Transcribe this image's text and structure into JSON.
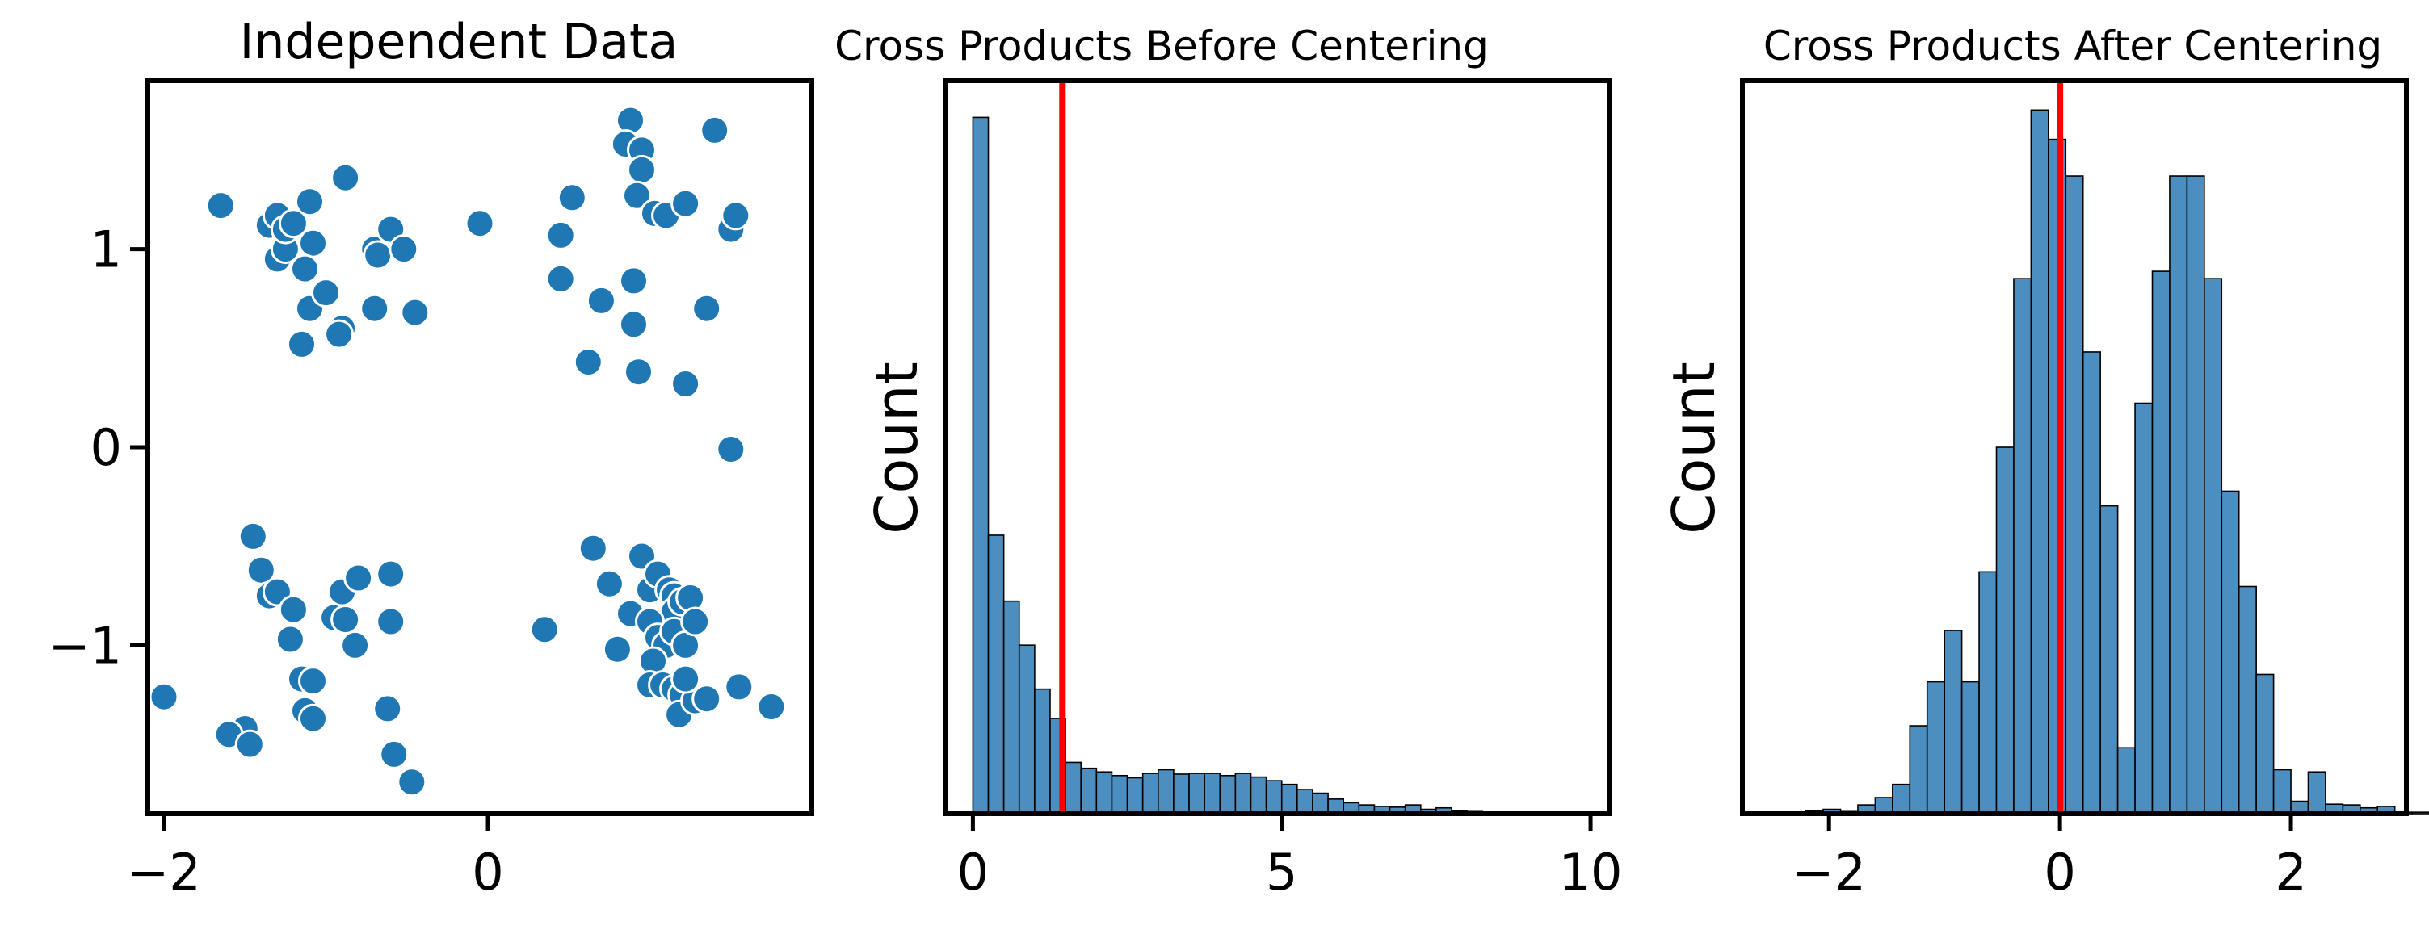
{
  "chart_data": [
    {
      "type": "scatter",
      "title": "Independent Data",
      "xlabel": "",
      "ylabel": "",
      "xlim": [
        -2.1,
        2.0
      ],
      "ylim": [
        -1.85,
        1.85
      ],
      "xticks": [
        {
          "value": -2,
          "label": "−2"
        },
        {
          "value": 0,
          "label": "0"
        }
      ],
      "yticks": [
        {
          "value": -1,
          "label": "−1"
        },
        {
          "value": 0,
          "label": "0"
        },
        {
          "value": 1,
          "label": "1"
        }
      ],
      "grid": false,
      "color": "#1f77b4",
      "points": [
        [
          -1.65,
          1.22
        ],
        [
          -1.35,
          1.12
        ],
        [
          -1.3,
          1.17
        ],
        [
          -1.3,
          0.95
        ],
        [
          -1.25,
          1.0
        ],
        [
          -1.25,
          1.1
        ],
        [
          -1.2,
          1.13
        ],
        [
          -1.1,
          1.24
        ],
        [
          -1.08,
          1.03
        ],
        [
          -1.13,
          0.9
        ],
        [
          -1.1,
          0.7
        ],
        [
          -1.0,
          0.78
        ],
        [
          -0.88,
          1.36
        ],
        [
          -0.9,
          0.6
        ],
        [
          -0.92,
          0.57
        ],
        [
          -1.15,
          0.52
        ],
        [
          -0.7,
          0.7
        ],
        [
          -0.7,
          1.0
        ],
        [
          -0.68,
          0.97
        ],
        [
          -0.6,
          1.1
        ],
        [
          -0.52,
          1.0
        ],
        [
          -0.45,
          0.68
        ],
        [
          -0.05,
          1.13
        ],
        [
          0.52,
          1.26
        ],
        [
          0.45,
          1.07
        ],
        [
          0.45,
          0.85
        ],
        [
          0.7,
          0.74
        ],
        [
          0.62,
          0.43
        ],
        [
          0.88,
          1.65
        ],
        [
          0.85,
          1.53
        ],
        [
          0.95,
          1.5
        ],
        [
          0.95,
          1.4
        ],
        [
          0.92,
          1.27
        ],
        [
          1.03,
          1.18
        ],
        [
          1.1,
          1.17
        ],
        [
          1.22,
          1.23
        ],
        [
          0.9,
          0.84
        ],
        [
          0.9,
          0.62
        ],
        [
          0.93,
          0.38
        ],
        [
          1.22,
          0.32
        ],
        [
          1.35,
          0.7
        ],
        [
          1.4,
          1.6
        ],
        [
          1.5,
          1.1
        ],
        [
          1.53,
          1.17
        ],
        [
          1.5,
          -0.01
        ],
        [
          -1.45,
          -0.45
        ],
        [
          -1.4,
          -0.62
        ],
        [
          -1.35,
          -0.75
        ],
        [
          -1.3,
          -0.73
        ],
        [
          -1.2,
          -0.82
        ],
        [
          -1.22,
          -0.97
        ],
        [
          -1.15,
          -1.17
        ],
        [
          -1.08,
          -1.18
        ],
        [
          -1.13,
          -1.33
        ],
        [
          -1.08,
          -1.37
        ],
        [
          -0.95,
          -0.86
        ],
        [
          -0.9,
          -0.73
        ],
        [
          -0.8,
          -0.66
        ],
        [
          -0.82,
          -1.0
        ],
        [
          -0.88,
          -0.87
        ],
        [
          -0.6,
          -0.64
        ],
        [
          -0.6,
          -0.88
        ],
        [
          -0.62,
          -1.32
        ],
        [
          -0.58,
          -1.55
        ],
        [
          -0.47,
          -1.69
        ],
        [
          -1.5,
          -1.42
        ],
        [
          -1.6,
          -1.45
        ],
        [
          -1.47,
          -1.5
        ],
        [
          -2.0,
          -1.26
        ],
        [
          0.35,
          -0.92
        ],
        [
          0.65,
          -0.51
        ],
        [
          0.75,
          -0.69
        ],
        [
          0.8,
          -1.02
        ],
        [
          0.88,
          -0.84
        ],
        [
          0.95,
          -0.55
        ],
        [
          1.0,
          -0.72
        ],
        [
          1.05,
          -0.64
        ],
        [
          1.12,
          -0.72
        ],
        [
          1.15,
          -0.75
        ],
        [
          1.15,
          -0.83
        ],
        [
          1.2,
          -0.78
        ],
        [
          1.25,
          -0.76
        ],
        [
          1.0,
          -0.88
        ],
        [
          1.05,
          -0.96
        ],
        [
          1.1,
          -1.0
        ],
        [
          1.15,
          -0.93
        ],
        [
          1.22,
          -1.0
        ],
        [
          1.28,
          -0.88
        ],
        [
          1.02,
          -1.08
        ],
        [
          1.0,
          -1.2
        ],
        [
          1.08,
          -1.2
        ],
        [
          1.15,
          -1.22
        ],
        [
          1.2,
          -1.25
        ],
        [
          1.18,
          -1.35
        ],
        [
          1.28,
          -1.28
        ],
        [
          1.35,
          -1.27
        ],
        [
          1.55,
          -1.21
        ],
        [
          1.75,
          -1.31
        ],
        [
          1.22,
          -1.17
        ]
      ]
    },
    {
      "type": "bar",
      "title": "Cross Products Before Centering",
      "xlabel": "",
      "ylabel": "Count",
      "xlim": [
        -0.45,
        10.3
      ],
      "ylim": [
        0,
        1.0
      ],
      "xticks": [
        {
          "value": 0,
          "label": "0"
        },
        {
          "value": 5,
          "label": "5"
        },
        {
          "value": 10,
          "label": "10"
        }
      ],
      "yticks": [],
      "bin_start": 0,
      "bin_width": 0.25,
      "values": [
        0.95,
        0.38,
        0.29,
        0.23,
        0.17,
        0.13,
        0.07,
        0.062,
        0.057,
        0.052,
        0.049,
        0.055,
        0.06,
        0.054,
        0.055,
        0.055,
        0.052,
        0.055,
        0.05,
        0.045,
        0.04,
        0.033,
        0.028,
        0.02,
        0.015,
        0.012,
        0.01,
        0.009,
        0.012,
        0.006,
        0.008,
        0.004,
        0.003,
        0.002,
        0.002,
        0.001,
        0.001,
        0.001,
        0.001,
        0.001
      ],
      "bar_color": "#4c8ebf",
      "vline": {
        "x": 1.45,
        "color": "#ff0000"
      },
      "grid": false
    },
    {
      "type": "bar",
      "title": "Cross Products After Centering",
      "xlabel": "",
      "ylabel": "Count",
      "xlim": [
        -2.75,
        3.0
      ],
      "ylim": [
        0,
        1.0
      ],
      "xticks": [
        {
          "value": -2,
          "label": "−2"
        },
        {
          "value": 0,
          "label": "0"
        },
        {
          "value": 2,
          "label": "2"
        }
      ],
      "yticks": [],
      "bin_start": -2.2,
      "bin_width": 0.15,
      "values": [
        0.004,
        0.006,
        0.003,
        0.012,
        0.022,
        0.04,
        0.12,
        0.18,
        0.25,
        0.18,
        0.33,
        0.5,
        0.73,
        0.96,
        0.92,
        0.87,
        0.63,
        0.42,
        0.09,
        0.56,
        0.74,
        0.87,
        0.87,
        0.73,
        0.44,
        0.31,
        0.19,
        0.06,
        0.017,
        0.057,
        0.013,
        0.012,
        0.008,
        0.01,
        0.002,
        0.002,
        0.001,
        0.001,
        0.001,
        0.001,
        0.001,
        0.001,
        0.002,
        0.005
      ],
      "bar_color": "#4c8ebf",
      "vline": {
        "x": 0,
        "color": "#ff0000"
      },
      "grid": false
    }
  ]
}
